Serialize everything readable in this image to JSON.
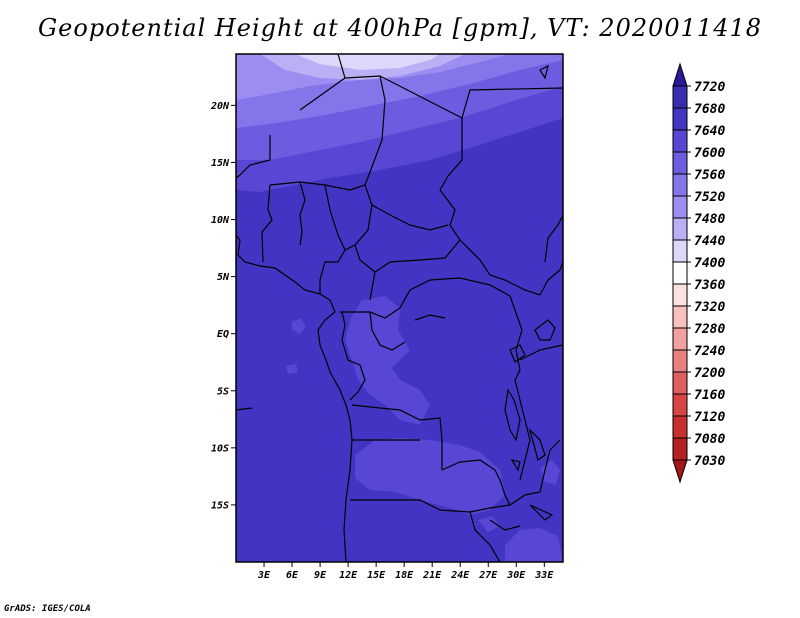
{
  "title": "Geopotential Height at 400hPa [gpm], VT: 2020011418",
  "credit": "GrADS: IGES/COLA",
  "map": {
    "lon_range": [
      0,
      35
    ],
    "lat_range": [
      -20,
      24.5
    ],
    "lat_ticks": [
      {
        "value": 20,
        "label": "20N"
      },
      {
        "value": 15,
        "label": "15N"
      },
      {
        "value": 10,
        "label": "10N"
      },
      {
        "value": 5,
        "label": "5N"
      },
      {
        "value": 0,
        "label": "EQ"
      },
      {
        "value": -5,
        "label": "5S"
      },
      {
        "value": -10,
        "label": "10S"
      },
      {
        "value": -15,
        "label": "15S"
      }
    ],
    "lon_ticks": [
      {
        "value": 3,
        "label": "3E"
      },
      {
        "value": 6,
        "label": "6E"
      },
      {
        "value": 9,
        "label": "9E"
      },
      {
        "value": 12,
        "label": "12E"
      },
      {
        "value": 15,
        "label": "15E"
      },
      {
        "value": 18,
        "label": "18E"
      },
      {
        "value": 21,
        "label": "21E"
      },
      {
        "value": 24,
        "label": "24E"
      },
      {
        "value": 27,
        "label": "27E"
      },
      {
        "value": 30,
        "label": "30E"
      },
      {
        "value": 33,
        "label": "33E"
      }
    ]
  },
  "colorbar": {
    "levels": [
      "7720",
      "7680",
      "7640",
      "7600",
      "7560",
      "7520",
      "7480",
      "7440",
      "7400",
      "7360",
      "7320",
      "7280",
      "7240",
      "7200",
      "7160",
      "7120",
      "7080",
      "7030"
    ],
    "colors": [
      "#2a1a9a",
      "#3a2cb0",
      "#4335c4",
      "#5846d4",
      "#6d5ce0",
      "#8575ea",
      "#9c8ef0",
      "#b9b0f6",
      "#dcd8fb",
      "#ffffff",
      "#fde0e0",
      "#f9c0c0",
      "#f2a0a0",
      "#e98080",
      "#e06060",
      "#d64444",
      "#c83030",
      "#b52020",
      "#a01818"
    ],
    "top_color": "#2a1a9a",
    "bottom_color": "#a01818"
  },
  "contours": {
    "7640_7680_main": "#4335c4",
    "7600_7640": "#5846d4",
    "7560_7600": "#6d5ce0",
    "7520_7560": "#8575ea",
    "7480_7520": "#9c8ef0",
    "7440_7480": "#b9b0f6",
    "7400_7440": "#dcd8fb"
  }
}
